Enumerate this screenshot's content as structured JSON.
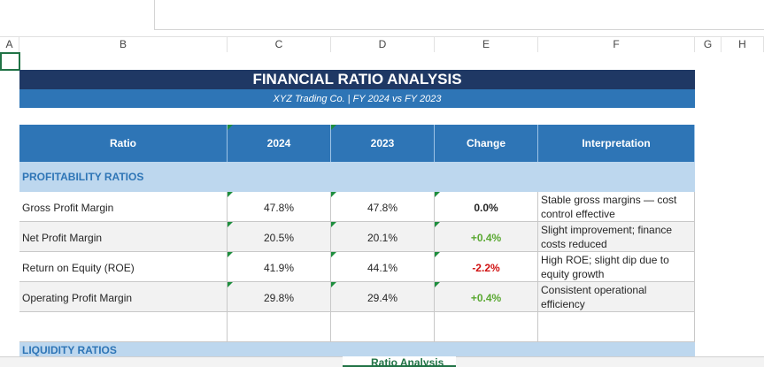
{
  "columns": [
    "A",
    "B",
    "C",
    "D",
    "E",
    "F",
    "G",
    "H"
  ],
  "report": {
    "title": "FINANCIAL RATIO ANALYSIS",
    "subtitle": "XYZ Trading Co. | FY 2024 vs FY 2023"
  },
  "table": {
    "headers": [
      "Ratio",
      "2024",
      "2023",
      "Change",
      "Interpretation"
    ],
    "sections": [
      {
        "name": "PROFITABILITY RATIOS",
        "rows": [
          {
            "ratio": "Gross Profit Margin",
            "y2024": "47.8%",
            "y2023": "47.8%",
            "change": "0.0%",
            "change_color": "#262626",
            "interpretation": "Stable gross margins — cost control effective"
          },
          {
            "ratio": "Net Profit Margin",
            "y2024": "20.5%",
            "y2023": "20.1%",
            "change": "+0.4%",
            "change_color": "#5aa832",
            "interpretation": "Slight improvement; finance costs reduced"
          },
          {
            "ratio": "Return on Equity (ROE)",
            "y2024": "41.9%",
            "y2023": "44.1%",
            "change": "-2.2%",
            "change_color": "#d01010",
            "interpretation": "High ROE; slight dip due to equity growth"
          },
          {
            "ratio": "Operating Profit Margin",
            "y2024": "29.8%",
            "y2023": "29.4%",
            "change": "+0.4%",
            "change_color": "#5aa832",
            "interpretation": "Consistent operational efficiency"
          }
        ]
      },
      {
        "name": "LIQUIDITY RATIOS",
        "rows": []
      }
    ]
  },
  "sheet_tab": "Ratio Analysis"
}
